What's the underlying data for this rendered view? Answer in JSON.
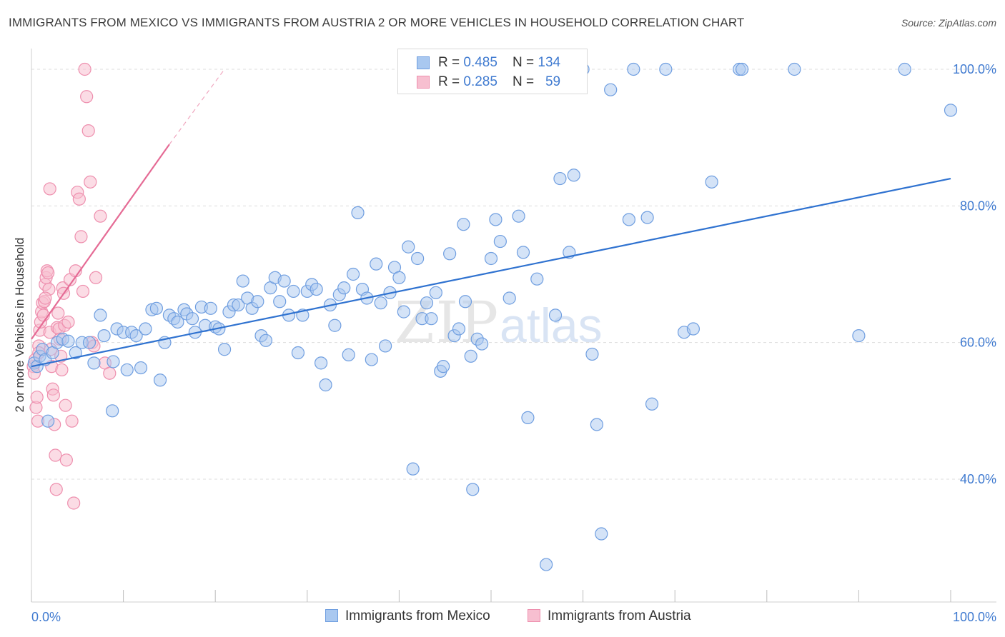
{
  "title": "IMMIGRANTS FROM MEXICO VS IMMIGRANTS FROM AUSTRIA 2 OR MORE VEHICLES IN HOUSEHOLD CORRELATION CHART",
  "source": "Source: ZipAtlas.com",
  "watermark": {
    "zip": "ZIP",
    "atlas": "atlas"
  },
  "colors": {
    "mexico_fill": "#a9c8f0",
    "mexico_stroke": "#6f9ee0",
    "mexico_line": "#2f72d0",
    "austria_fill": "#f7bfd0",
    "austria_stroke": "#ee8fae",
    "austria_line": "#e56b95",
    "tick_color": "#3f7ad0",
    "grid": "#dcdcdc"
  },
  "legend": {
    "rows": [
      {
        "r_label": "R = ",
        "r_value": "0.485",
        "n_label": "N = ",
        "n_value": "134"
      },
      {
        "r_label": "R = ",
        "r_value": "0.285",
        "n_label": "N = ",
        "n_value": "59"
      }
    ]
  },
  "bottom_legend": [
    "Immigrants from Mexico",
    "Immigrants from Austria"
  ],
  "chart_data": {
    "type": "scatter",
    "title": "IMMIGRANTS FROM MEXICO VS IMMIGRANTS FROM AUSTRIA 2 OR MORE VEHICLES IN HOUSEHOLD CORRELATION CHART",
    "xlabel": "",
    "ylabel": "2 or more Vehicles in Household",
    "xlim": [
      0,
      100
    ],
    "ylim": [
      20,
      103
    ],
    "x_tick_labels": [
      "0.0%",
      "100.0%"
    ],
    "y_ticks": [
      40,
      60,
      80,
      100
    ],
    "y_tick_labels": [
      "40.0%",
      "60.0%",
      "80.0%",
      "100.0%"
    ],
    "grid": true,
    "legend_position": "top-center",
    "series": [
      {
        "name": "Immigrants from Mexico",
        "r": 0.485,
        "n": 134,
        "trend": {
          "x": [
            0,
            100
          ],
          "y": [
            56.5,
            84.0
          ]
        },
        "points": [
          [
            0.3,
            57.0
          ],
          [
            0.6,
            56.5
          ],
          [
            0.9,
            58.0
          ],
          [
            1.2,
            59.0
          ],
          [
            1.5,
            57.5
          ],
          [
            1.8,
            48.5
          ],
          [
            2.3,
            58.5
          ],
          [
            2.8,
            60.0
          ],
          [
            3.4,
            60.5
          ],
          [
            4.0,
            60.2
          ],
          [
            4.8,
            58.5
          ],
          [
            5.5,
            60.0
          ],
          [
            6.3,
            60.0
          ],
          [
            6.8,
            57.0
          ],
          [
            7.5,
            64.0
          ],
          [
            7.9,
            61.0
          ],
          [
            8.8,
            50.0
          ],
          [
            8.9,
            57.2
          ],
          [
            9.3,
            62.0
          ],
          [
            10.0,
            61.5
          ],
          [
            10.4,
            56.0
          ],
          [
            10.9,
            61.5
          ],
          [
            11.4,
            61.0
          ],
          [
            11.9,
            56.3
          ],
          [
            12.4,
            62.0
          ],
          [
            13.1,
            64.8
          ],
          [
            13.6,
            65.0
          ],
          [
            14.0,
            54.5
          ],
          [
            14.5,
            60.0
          ],
          [
            15.0,
            64.0
          ],
          [
            15.5,
            63.5
          ],
          [
            15.9,
            63.0
          ],
          [
            16.6,
            64.8
          ],
          [
            16.9,
            64.2
          ],
          [
            17.5,
            63.5
          ],
          [
            17.8,
            61.5
          ],
          [
            18.5,
            65.2
          ],
          [
            18.9,
            62.5
          ],
          [
            19.5,
            65.0
          ],
          [
            20.0,
            62.3
          ],
          [
            20.4,
            62.0
          ],
          [
            21.0,
            59.0
          ],
          [
            21.5,
            64.5
          ],
          [
            22.0,
            65.5
          ],
          [
            22.5,
            65.5
          ],
          [
            23.0,
            69.0
          ],
          [
            23.5,
            66.5
          ],
          [
            24.0,
            65.0
          ],
          [
            24.6,
            66.0
          ],
          [
            25.0,
            61.0
          ],
          [
            25.5,
            60.3
          ],
          [
            26.0,
            68.0
          ],
          [
            26.5,
            69.5
          ],
          [
            27.0,
            66.0
          ],
          [
            27.5,
            69.0
          ],
          [
            28.0,
            64.0
          ],
          [
            28.5,
            67.5
          ],
          [
            29.0,
            58.5
          ],
          [
            29.5,
            64.0
          ],
          [
            30.0,
            67.5
          ],
          [
            30.5,
            68.5
          ],
          [
            31.0,
            67.8
          ],
          [
            31.5,
            57.0
          ],
          [
            32.0,
            53.8
          ],
          [
            32.5,
            65.5
          ],
          [
            33.0,
            62.5
          ],
          [
            33.5,
            67.0
          ],
          [
            34.0,
            68.0
          ],
          [
            34.5,
            58.2
          ],
          [
            35.0,
            70.0
          ],
          [
            35.5,
            79.0
          ],
          [
            36.0,
            67.8
          ],
          [
            36.5,
            66.5
          ],
          [
            37.0,
            57.5
          ],
          [
            37.5,
            71.5
          ],
          [
            38.0,
            65.8
          ],
          [
            38.5,
            59.5
          ],
          [
            39.0,
            67.3
          ],
          [
            39.5,
            71.0
          ],
          [
            40.0,
            69.5
          ],
          [
            40.5,
            64.5
          ],
          [
            41.0,
            74.0
          ],
          [
            41.5,
            41.5
          ],
          [
            42.0,
            72.3
          ],
          [
            42.5,
            63.5
          ],
          [
            43.0,
            65.8
          ],
          [
            43.5,
            63.5
          ],
          [
            44.0,
            67.3
          ],
          [
            44.5,
            55.8
          ],
          [
            44.8,
            56.5
          ],
          [
            45.5,
            73.0
          ],
          [
            46.0,
            61.0
          ],
          [
            46.5,
            62.0
          ],
          [
            47.0,
            77.3
          ],
          [
            47.2,
            66.0
          ],
          [
            47.8,
            58.0
          ],
          [
            48.0,
            38.5
          ],
          [
            48.5,
            60.5
          ],
          [
            49.0,
            59.8
          ],
          [
            50.0,
            72.3
          ],
          [
            50.5,
            78.0
          ],
          [
            51.0,
            74.8
          ],
          [
            52.0,
            66.5
          ],
          [
            53.0,
            78.5
          ],
          [
            53.5,
            73.2
          ],
          [
            54.0,
            49.0
          ],
          [
            55.0,
            69.3
          ],
          [
            56.0,
            27.5
          ],
          [
            57.0,
            64.0
          ],
          [
            57.5,
            84.0
          ],
          [
            58.5,
            73.2
          ],
          [
            59.0,
            84.5
          ],
          [
            60.0,
            100.0
          ],
          [
            61.0,
            58.3
          ],
          [
            61.5,
            48.0
          ],
          [
            62.0,
            32.0
          ],
          [
            63.0,
            97.0
          ],
          [
            65.0,
            78.0
          ],
          [
            67.0,
            78.3
          ],
          [
            67.5,
            51.0
          ],
          [
            69.0,
            100.0
          ],
          [
            71.0,
            61.5
          ],
          [
            72.0,
            62.0
          ],
          [
            74.0,
            83.5
          ],
          [
            77.0,
            100.0
          ],
          [
            77.3,
            100.0
          ],
          [
            83.0,
            100.0
          ],
          [
            90.0,
            61.0
          ],
          [
            95.0,
            100.0
          ],
          [
            100.0,
            94.0
          ],
          [
            56.5,
            100.0
          ],
          [
            65.5,
            100.0
          ]
        ]
      },
      {
        "name": "Immigrants from Austria",
        "r": 0.285,
        "n": 59,
        "trend": {
          "x": [
            0,
            15
          ],
          "y": [
            60.5,
            89.0
          ]
        },
        "trend_extended": {
          "x": [
            15,
            21
          ],
          "y": [
            89.0,
            100.0
          ]
        },
        "points": [
          [
            0.2,
            56.5
          ],
          [
            0.3,
            55.5
          ],
          [
            0.4,
            57.5
          ],
          [
            0.5,
            50.5
          ],
          [
            0.6,
            52.0
          ],
          [
            0.7,
            48.5
          ],
          [
            0.8,
            59.5
          ],
          [
            0.9,
            61.8
          ],
          [
            1.0,
            63.0
          ],
          [
            1.1,
            64.5
          ],
          [
            1.2,
            65.8
          ],
          [
            1.3,
            64.0
          ],
          [
            1.4,
            66.0
          ],
          [
            1.5,
            68.5
          ],
          [
            1.6,
            69.5
          ],
          [
            1.7,
            70.5
          ],
          [
            1.8,
            70.2
          ],
          [
            1.9,
            67.8
          ],
          [
            2.0,
            61.5
          ],
          [
            2.1,
            59.0
          ],
          [
            2.2,
            56.5
          ],
          [
            2.3,
            53.2
          ],
          [
            2.4,
            52.3
          ],
          [
            2.5,
            48.0
          ],
          [
            2.6,
            43.5
          ],
          [
            2.7,
            38.5
          ],
          [
            2.8,
            62.2
          ],
          [
            2.9,
            64.3
          ],
          [
            3.0,
            62.0
          ],
          [
            3.1,
            60.5
          ],
          [
            3.2,
            58.0
          ],
          [
            3.3,
            56.0
          ],
          [
            3.4,
            68.0
          ],
          [
            3.5,
            67.2
          ],
          [
            3.6,
            62.5
          ],
          [
            3.7,
            50.8
          ],
          [
            3.8,
            42.8
          ],
          [
            4.0,
            63.0
          ],
          [
            4.2,
            69.2
          ],
          [
            4.4,
            48.5
          ],
          [
            4.6,
            36.5
          ],
          [
            4.8,
            70.5
          ],
          [
            5.0,
            82.0
          ],
          [
            5.2,
            81.0
          ],
          [
            5.4,
            75.5
          ],
          [
            5.6,
            67.5
          ],
          [
            5.8,
            100.0
          ],
          [
            6.0,
            96.0
          ],
          [
            6.2,
            91.0
          ],
          [
            6.4,
            83.5
          ],
          [
            6.6,
            60.0
          ],
          [
            6.8,
            59.5
          ],
          [
            7.0,
            69.5
          ],
          [
            7.5,
            78.5
          ],
          [
            8.0,
            57.0
          ],
          [
            8.5,
            55.5
          ],
          [
            2.0,
            82.5
          ],
          [
            1.5,
            66.5
          ],
          [
            0.8,
            58.5
          ]
        ]
      }
    ]
  }
}
